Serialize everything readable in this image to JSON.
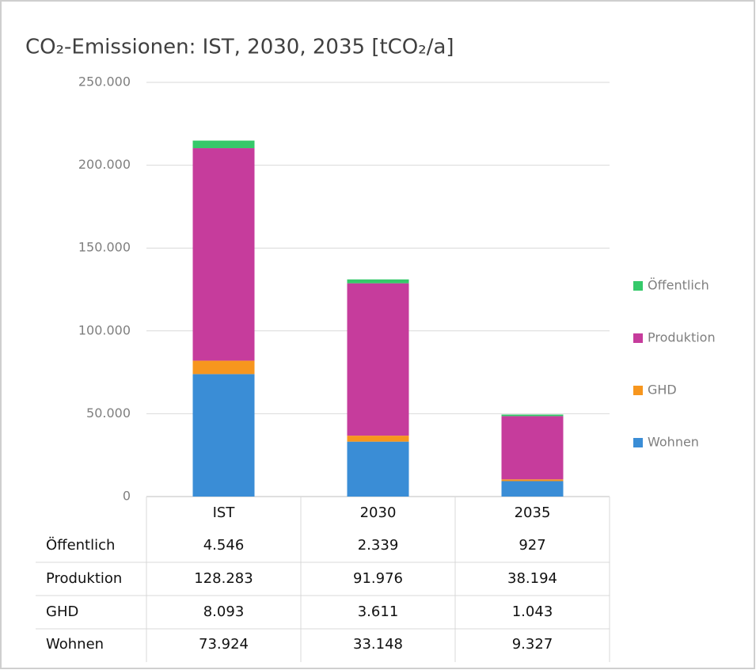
{
  "chart_data": {
    "type": "stacked_bar",
    "title": "CO₂-Emissionen: IST, 2030, 2035 [tCO₂/a]",
    "categories": [
      "IST",
      "2030",
      "2035"
    ],
    "series": [
      {
        "name": "Wohnen",
        "color": "#3a8dd6",
        "values": [
          73924,
          33148,
          9327
        ],
        "value_labels": [
          "73.924",
          "33.148",
          "9.327"
        ]
      },
      {
        "name": "GHD",
        "color": "#f7961e",
        "values": [
          8093,
          3611,
          1043
        ],
        "value_labels": [
          "8.093",
          "3.611",
          "1.043"
        ]
      },
      {
        "name": "Produktion",
        "color": "#c63c9c",
        "values": [
          128283,
          91976,
          38194
        ],
        "value_labels": [
          "128.283",
          "91.976",
          "38.194"
        ]
      },
      {
        "name": "Öffentlich",
        "color": "#35c96a",
        "values": [
          4546,
          2339,
          927
        ],
        "value_labels": [
          "4.546",
          "2.339",
          "927"
        ]
      }
    ],
    "ylim": [
      0,
      250000
    ],
    "yticks": [
      0,
      {
        "value": 50000,
        "label": "50.000"
      },
      {
        "value": 100000,
        "label": "100.000"
      },
      {
        "value": 150000,
        "label": "150.000"
      },
      {
        "value": 200000,
        "label": "200.000"
      },
      {
        "value": 250000,
        "label": "250.000"
      }
    ],
    "grid": true,
    "legend": "right"
  }
}
